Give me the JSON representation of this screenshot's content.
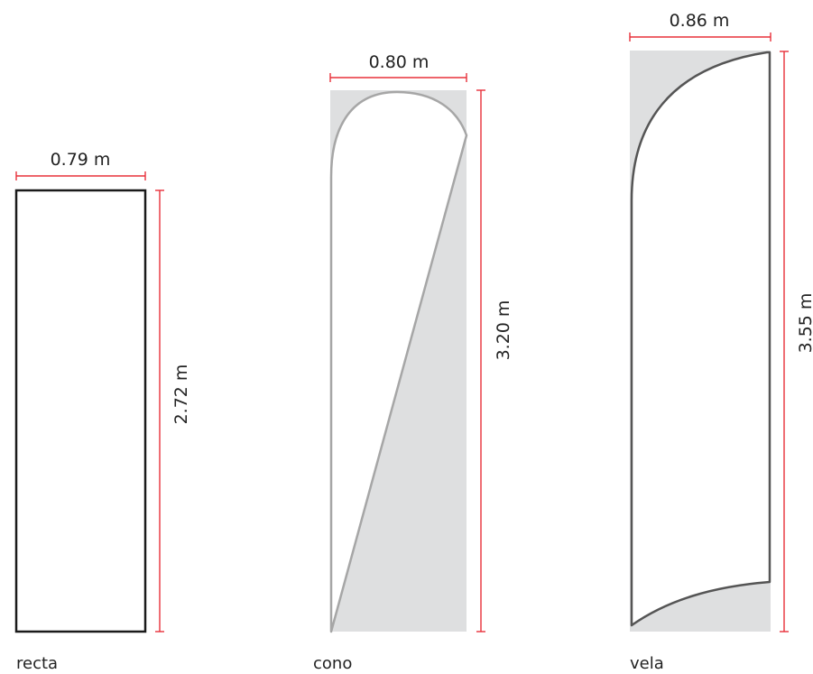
{
  "colors": {
    "dimension_line": "#e8303a",
    "shape_fill": "#dedfe0",
    "outline": "#999999",
    "text": "#222222"
  },
  "flags": [
    {
      "id": "recta",
      "caption": "recta",
      "width_label": "0.79 m",
      "height_label": "2.72 m"
    },
    {
      "id": "cono",
      "caption": "cono",
      "width_label": "0.80 m",
      "height_label": "3.20 m"
    },
    {
      "id": "vela",
      "caption": "vela",
      "width_label": "0.86 m",
      "height_label": "3.55 m"
    }
  ]
}
